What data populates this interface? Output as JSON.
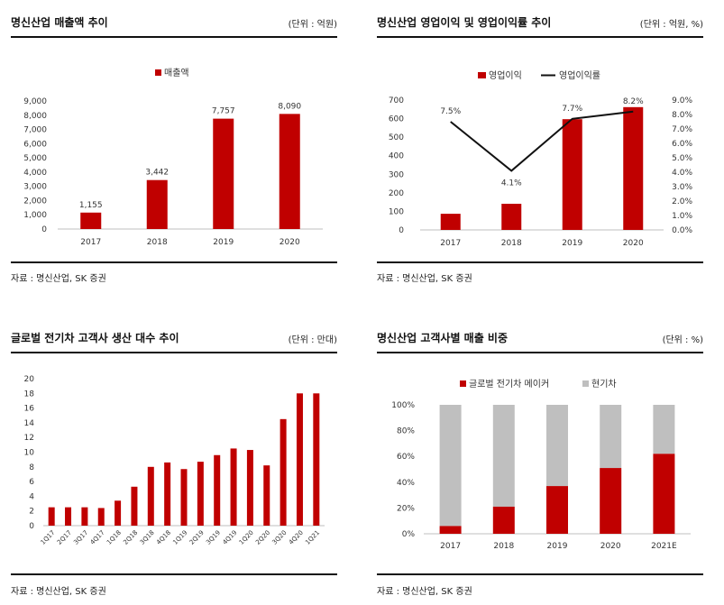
{
  "colors": {
    "red": "#c00000",
    "gray": "#bfbfbf",
    "line": "#111111",
    "axis": "#bfbfbf"
  },
  "chart_data": [
    {
      "id": "revenue",
      "type": "bar",
      "title": "명신산업 매출액 추이",
      "unit": "(단위 : 억원)",
      "source": "자료 : 명신산업, SK 증권",
      "legend": [
        "매출액"
      ],
      "categories": [
        "2017",
        "2018",
        "2019",
        "2020"
      ],
      "series": [
        {
          "name": "매출액",
          "values": [
            1155,
            3442,
            7757,
            8090
          ]
        }
      ],
      "data_labels": [
        "1,155",
        "3,442",
        "7,757",
        "8,090"
      ],
      "ylim": [
        0,
        9000
      ],
      "yticks": [
        "0",
        "1,000",
        "2,000",
        "3,000",
        "4,000",
        "5,000",
        "6,000",
        "7,000",
        "8,000",
        "9,000"
      ],
      "legend_position": "top",
      "grid": false
    },
    {
      "id": "op-income",
      "type": "bar+line",
      "title": "명신산업 영업이익 및 영업이익률 추이",
      "unit": "(단위 : 억원, %)",
      "source": "자료 : 명신산업, SK 증권",
      "legend": [
        "영업이익",
        "영업이익률"
      ],
      "categories": [
        "2017",
        "2018",
        "2019",
        "2020"
      ],
      "series": [
        {
          "name": "영업이익",
          "values": [
            87,
            141,
            597,
            662
          ]
        },
        {
          "name": "영업이익률",
          "values": [
            7.5,
            4.1,
            7.7,
            8.2
          ]
        }
      ],
      "line_labels": [
        "7.5%",
        "4.1%",
        "7.7%",
        "8.2%"
      ],
      "ylim": [
        0,
        700
      ],
      "yticks": [
        "0",
        "100",
        "200",
        "300",
        "400",
        "500",
        "600",
        "700"
      ],
      "y2lim": [
        0,
        9
      ],
      "y2ticks": [
        "0.0%",
        "1.0%",
        "2.0%",
        "3.0%",
        "4.0%",
        "5.0%",
        "6.0%",
        "7.0%",
        "8.0%",
        "9.0%"
      ],
      "legend_position": "top",
      "grid": false
    },
    {
      "id": "global-ev",
      "type": "bar",
      "title": "글로벌 전기차 고객사 생산 대수 추이",
      "unit": "(단위 : 만대)",
      "source": "자료 : 명신산업, SK 증권",
      "categories": [
        "1Q17",
        "2Q17",
        "3Q17",
        "4Q17",
        "1Q18",
        "2Q18",
        "3Q18",
        "4Q18",
        "1Q19",
        "2Q19",
        "3Q19",
        "4Q19",
        "1Q20",
        "2Q20",
        "3Q20",
        "4Q20",
        "1Q21"
      ],
      "series": [
        {
          "values": [
            2.5,
            2.5,
            2.5,
            2.4,
            3.4,
            5.3,
            8.0,
            8.6,
            7.7,
            8.7,
            9.6,
            10.5,
            10.3,
            8.2,
            14.5,
            18.0,
            18.0
          ]
        }
      ],
      "ylim": [
        0,
        20
      ],
      "yticks": [
        "0",
        "2",
        "4",
        "6",
        "8",
        "10",
        "12",
        "14",
        "16",
        "18",
        "20"
      ],
      "grid": false
    },
    {
      "id": "customer-mix",
      "type": "bar",
      "stacked": "percent",
      "title": "명신산업 고객사별 매출 비중",
      "unit": "(단위 : %)",
      "source": "자료 : 명신산업, SK 증권",
      "legend": [
        "글로벌 전기차 메이커",
        "현기차"
      ],
      "categories": [
        "2017",
        "2018",
        "2019",
        "2020",
        "2021E"
      ],
      "series": [
        {
          "name": "글로벌 전기차 메이커",
          "values": [
            6,
            21,
            37,
            51,
            62
          ]
        },
        {
          "name": "현기차",
          "values": [
            94,
            79,
            63,
            49,
            38
          ]
        }
      ],
      "ylim": [
        0,
        100
      ],
      "yticks": [
        "0%",
        "20%",
        "40%",
        "60%",
        "80%",
        "100%"
      ],
      "legend_position": "top",
      "grid": false
    }
  ]
}
